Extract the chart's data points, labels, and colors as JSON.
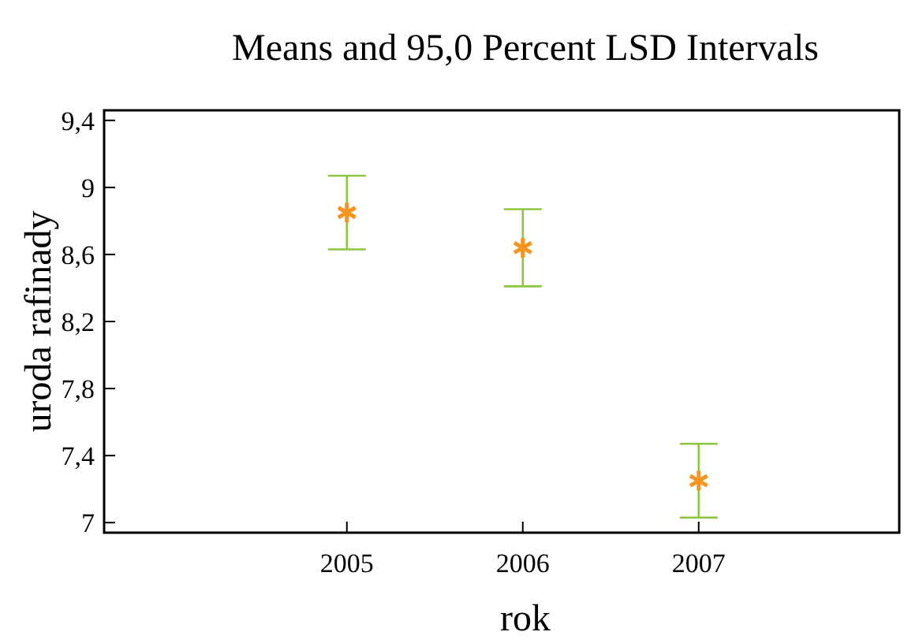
{
  "chart_data": {
    "type": "scatter",
    "title": "Means and 95,0 Percent LSD Intervals",
    "xlabel": "rok",
    "ylabel": "uroda rafinady",
    "x": [
      2005,
      2006,
      2007
    ],
    "series": [
      {
        "color": "#f7941d",
        "values": [
          8.85,
          8.64,
          7.25
        ],
        "errors": [
          0.22,
          0.23,
          0.22
        ]
      }
    ],
    "marker": "cross",
    "grid": false,
    "xlim": [
      2003.62,
      2008.14
    ],
    "xticks": [
      2005,
      2006,
      2007
    ],
    "ylim": [
      6.94,
      9.46
    ],
    "yticks": [
      7,
      {
        "value": 7.4,
        "label": "7,4"
      },
      {
        "value": 7.8,
        "label": "7,8"
      },
      {
        "value": 8.2,
        "label": "8,2"
      },
      {
        "value": 8.6,
        "label": "8,6"
      },
      9,
      {
        "value": 9.4,
        "label": "9,4"
      }
    ]
  }
}
